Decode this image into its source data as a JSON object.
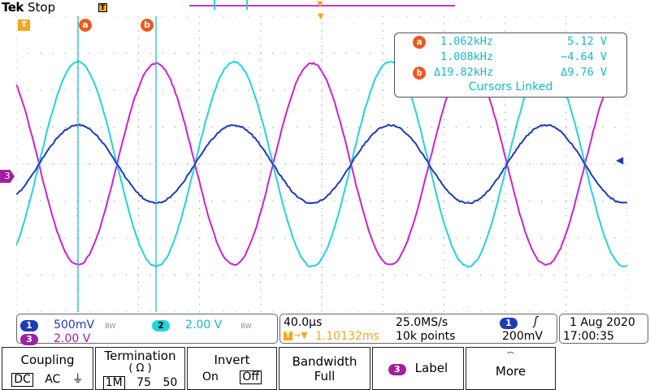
{
  "header": {
    "brand": "Tek",
    "state": "Stop",
    "trigger_badge": "T"
  },
  "screen": {
    "trigger_position_tag": "T",
    "channel3_marker": "3",
    "cursor_a_tag": "a",
    "cursor_b_tag": "b"
  },
  "cursor_readout": {
    "a_tag": "a",
    "b_tag": "b",
    "a_freq": "1.062kHz",
    "a_volt": "5.12 V",
    "b_freq": "1.008kHz",
    "b_volt": "−4.64 V",
    "delta_freq": "Δ19.82kHz",
    "delta_volt": "Δ9.76 V",
    "linked": "Cursors Linked"
  },
  "status": {
    "ch1_num": "1",
    "ch1_scale": "500mV",
    "ch1_bw": "BW",
    "ch2_num": "2",
    "ch2_scale": "2.00 V",
    "ch2_bw": "BW",
    "ch3_num": "3",
    "ch3_scale": "2.00 V",
    "timebase": "40.0µs",
    "sample_rate": "25.0MS/s",
    "trigger_pos_badge": "T",
    "trigger_pos": "1.10132ms",
    "record_length": "10k points",
    "trig_src": "1",
    "trig_slope": "ʃ",
    "trig_level": "200mV",
    "date": "1 Aug 2020",
    "time": "17:00:35"
  },
  "softkeys": {
    "coupling": {
      "title": "Coupling",
      "opt_dc": "DC",
      "opt_ac": "AC",
      "opt_gnd": "⏚"
    },
    "termination": {
      "title": "Termination",
      "subtitle": "( Ω )",
      "opt_1m": "1M",
      "opt_75": "75",
      "opt_50": "50"
    },
    "invert": {
      "title": "Invert",
      "opt_on": "On",
      "opt_off": "Off"
    },
    "bandwidth": {
      "title": "Bandwidth",
      "value": "Full"
    },
    "label": {
      "badge": "3",
      "title": "Label"
    },
    "more": {
      "title": "More"
    }
  },
  "colors": {
    "ch1": "#1f3bb3",
    "ch2": "#22d3dd",
    "ch3": "#cc22cc",
    "cursor": "#16b8c8",
    "accent": "#ea5a1e"
  }
}
